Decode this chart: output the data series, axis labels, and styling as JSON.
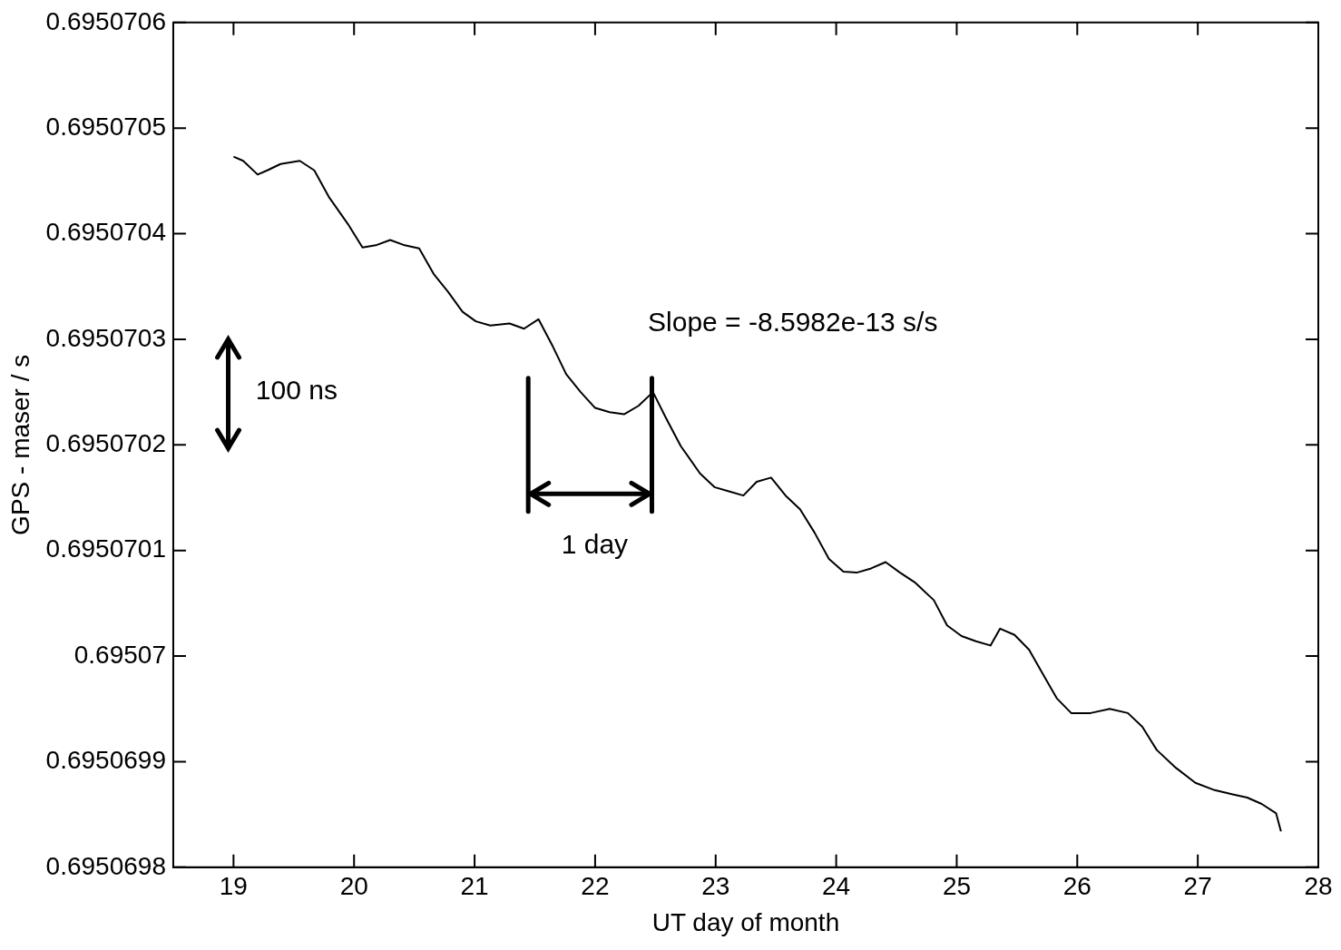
{
  "chart_data": {
    "type": "line",
    "xlabel": "UT day of month",
    "ylabel": "GPS - maser / s",
    "annotations": [
      "Slope = -8.5982e-13 s/s",
      "100 ns",
      "1 day"
    ],
    "xlim": [
      18.5,
      28
    ],
    "xticks": [
      19,
      20,
      21,
      22,
      23,
      24,
      25,
      26,
      27,
      28
    ],
    "ylim": [
      0.6950698,
      0.6950706
    ],
    "yticks": [
      0.6950698,
      0.6950699,
      0.69507,
      0.6950701,
      0.6950702,
      0.6950703,
      0.6950704,
      0.6950705,
      0.6950706
    ],
    "legend": false,
    "marker": "none",
    "line_style": "solid",
    "series": [
      {
        "color": "#000000",
        "x": [
          19.0,
          19.08,
          19.2,
          19.28,
          19.39,
          19.55,
          19.67,
          19.79,
          19.95,
          20.07,
          20.18,
          20.3,
          20.42,
          20.54,
          20.66,
          20.78,
          20.9,
          21.01,
          21.13,
          21.29,
          21.41,
          21.53,
          21.65,
          21.76,
          21.88,
          22.0,
          22.12,
          22.24,
          22.36,
          22.48,
          22.59,
          22.71,
          22.87,
          22.99,
          23.11,
          23.23,
          23.34,
          23.46,
          23.58,
          23.7,
          23.82,
          23.94,
          24.06,
          24.17,
          24.29,
          24.41,
          24.53,
          24.65,
          24.81,
          24.92,
          25.04,
          25.16,
          25.28,
          25.36,
          25.48,
          25.6,
          25.71,
          25.83,
          25.95,
          26.11,
          26.27,
          26.42,
          26.54,
          26.66,
          26.82,
          26.98,
          27.14,
          27.29,
          27.41,
          27.53,
          27.65,
          27.69
        ],
        "values": [
          0.695070473,
          0.695070469,
          0.695070456,
          0.69507046,
          0.695070466,
          0.695070469,
          0.69507046,
          0.695070435,
          0.695070409,
          0.695070387,
          0.695070389,
          0.695070394,
          0.695070389,
          0.695070386,
          0.695070362,
          0.695070345,
          0.695070326,
          0.695070317,
          0.695070313,
          0.695070315,
          0.69507031,
          0.695070319,
          0.695070293,
          0.695070267,
          0.69507025,
          0.695070235,
          0.695070231,
          0.695070229,
          0.695070237,
          0.69507025,
          0.695070225,
          0.695070199,
          0.695070173,
          0.69507016,
          0.695070156,
          0.695070152,
          0.695070165,
          0.695070169,
          0.695070152,
          0.695070139,
          0.695070117,
          0.695070092,
          0.69507008,
          0.695070079,
          0.695070083,
          0.695070089,
          0.695070079,
          0.69507007,
          0.695070053,
          0.695070029,
          0.695070019,
          0.695070014,
          0.69507001,
          0.695070026,
          0.69507002,
          0.695070006,
          0.695069984,
          0.69506996,
          0.695069946,
          0.695069946,
          0.69506995,
          0.695069946,
          0.695069933,
          0.695069911,
          0.695069894,
          0.69506988,
          0.695069873,
          0.695069869,
          0.695069866,
          0.69506986,
          0.695069851,
          0.695069834
        ]
      }
    ]
  }
}
